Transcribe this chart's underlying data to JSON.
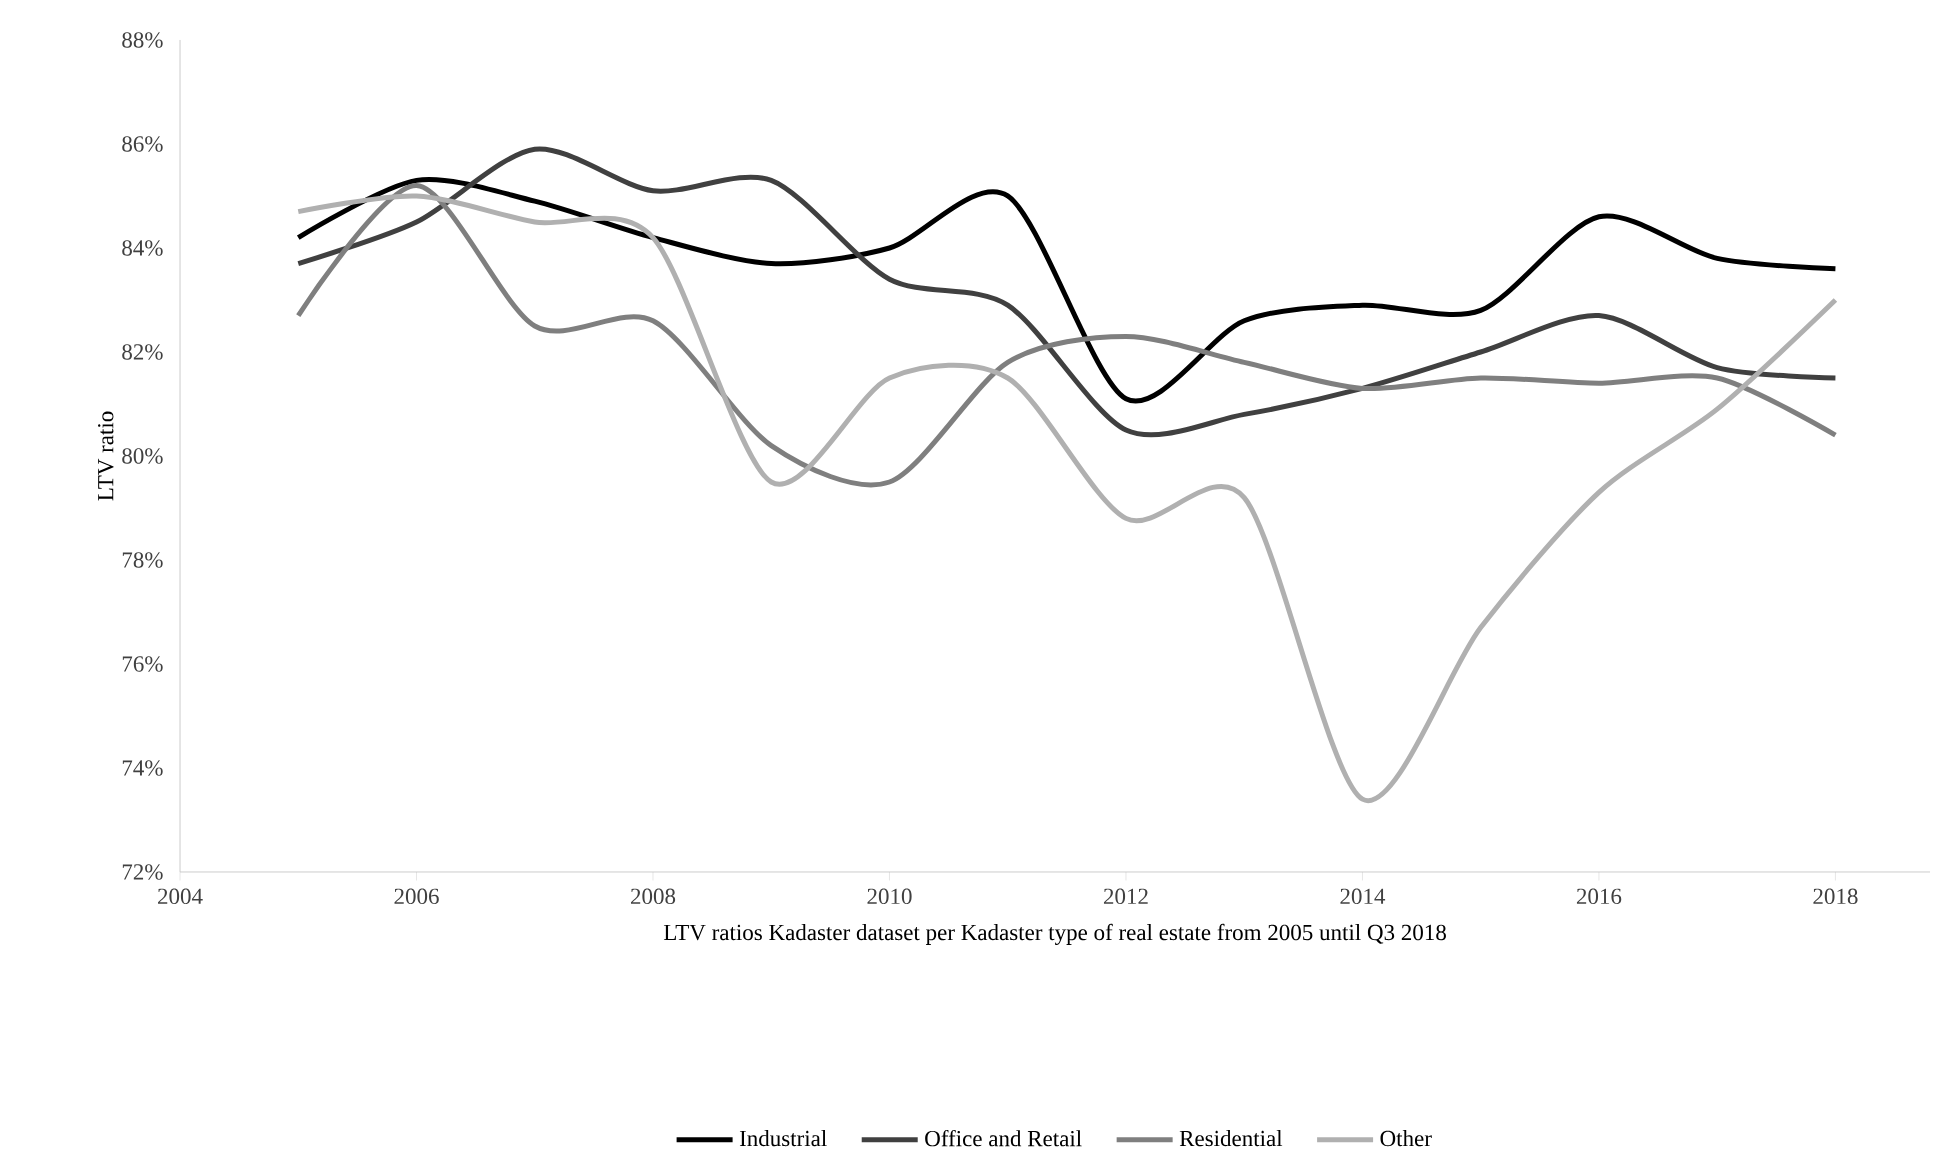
{
  "chart_data": {
    "type": "line",
    "xlabel": "LTV ratios Kadaster dataset per Kadaster type of real estate from 2005 until Q3 2018",
    "ylabel": "LTV ratio",
    "x": [
      2005,
      2006,
      2007,
      2008,
      2009,
      2010,
      2011,
      2012,
      2013,
      2014,
      2015,
      2016,
      2017,
      2018
    ],
    "series": [
      {
        "name": "Industrial",
        "color": "#000000",
        "values": [
          84.2,
          85.3,
          84.9,
          84.2,
          83.7,
          84.0,
          85.0,
          81.1,
          82.6,
          82.9,
          82.8,
          84.6,
          83.8,
          83.6
        ]
      },
      {
        "name": "Office and Retail",
        "color": "#404040",
        "values": [
          83.7,
          84.5,
          85.9,
          85.1,
          85.3,
          83.4,
          82.9,
          80.5,
          80.8,
          81.3,
          82.0,
          82.7,
          81.7,
          81.5
        ]
      },
      {
        "name": "Residential",
        "color": "#7f7f7f",
        "values": [
          82.7,
          85.2,
          82.5,
          82.6,
          80.2,
          79.5,
          81.8,
          82.3,
          81.8,
          81.3,
          81.5,
          81.4,
          81.5,
          80.4
        ]
      },
      {
        "name": "Other",
        "color": "#b0b0b0",
        "values": [
          84.7,
          85.0,
          84.5,
          84.2,
          79.5,
          81.5,
          81.5,
          78.8,
          79.2,
          73.4,
          76.7,
          79.3,
          80.9,
          83.0
        ]
      }
    ],
    "xlim": [
      2004,
      2018.8
    ],
    "xticks": [
      2004,
      2006,
      2008,
      2010,
      2012,
      2014,
      2016,
      2018
    ],
    "ylim": [
      72,
      88
    ],
    "yticks": [
      {
        "value": 72,
        "label": "72%"
      },
      {
        "value": 74,
        "label": "74%"
      },
      {
        "value": 76,
        "label": "76%"
      },
      {
        "value": 78,
        "label": "78%"
      },
      {
        "value": 80,
        "label": "80%"
      },
      {
        "value": 82,
        "label": "82%"
      },
      {
        "value": 84,
        "label": "84%"
      },
      {
        "value": 86,
        "label": "86%"
      },
      {
        "value": 88,
        "label": "88%"
      }
    ],
    "grid": false,
    "legend": "bottom",
    "marker": "none",
    "line_style": "solid"
  }
}
